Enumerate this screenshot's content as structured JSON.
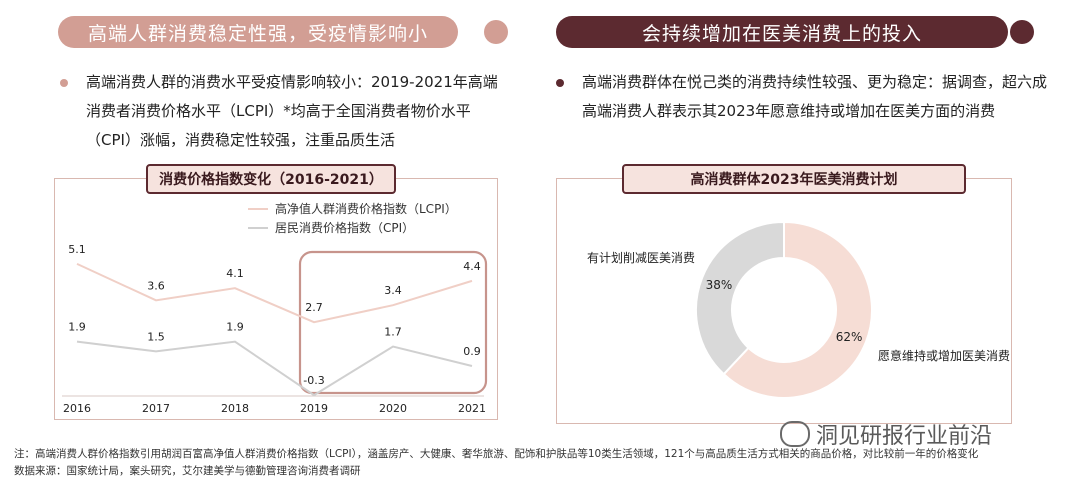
{
  "left": {
    "header": "高端人群消费稳定性强，受疫情影响小",
    "bullet": "高端消费人群的消费水平受疫情影响较小：2019-2021年高端消费者消费价格水平（LCPI）*均高于全国消费者物价水平（CPI）涨幅，消费稳定性较强，注重品质生活",
    "panel_title": "消费价格指数变化（2016-2021）"
  },
  "right": {
    "header": "会持续增加在医美消费上的投入",
    "bullet": "高端消费群体在悦己类的消费持续性较强、更为稳定：据调查，超六成高端消费人群表示其2023年愿意维持或增加在医美方面的消费",
    "panel_title": "高消费群体2023年医美消费计划"
  },
  "chart_data": [
    {
      "type": "line",
      "title": "消费价格指数变化（2016-2021）",
      "x": [
        "2016",
        "2017",
        "2018",
        "2019",
        "2020",
        "2021"
      ],
      "series": [
        {
          "name": "高净值人群消费价格指数（LCPI）",
          "values": [
            5.1,
            3.6,
            4.1,
            2.7,
            3.4,
            4.4
          ],
          "color": "#f0cfc6"
        },
        {
          "name": "居民消费价格指数（CPI）",
          "values": [
            1.9,
            1.5,
            1.9,
            -0.3,
            1.7,
            0.9
          ],
          "color": "#d0d0d0"
        }
      ],
      "ylim": [
        -0.5,
        6
      ],
      "annotation": "2019-2021 highlighted"
    },
    {
      "type": "pie",
      "title": "高消费群体2023年医美消费计划",
      "categories": [
        "愿意维持或增加医美消费",
        "有计划削减医美消费"
      ],
      "values": [
        62,
        38
      ],
      "labels": [
        "62%",
        "38%"
      ],
      "colors": [
        "#f6ddd5",
        "#d9d9d9"
      ]
    }
  ],
  "footnote": {
    "line1": "注：高端消费人群价格指数引用胡润百富高净值人群消费价格指数（LCPI），涵盖房产、大健康、奢华旅游、配饰和护肤品等10类生活领域，121个与高品质生活方式相关的商品价格，对比较前一年的价格变化",
    "line2": "数据来源：国家统计局，案头研究，艾尔建美学与德勤管理咨询消费者调研"
  },
  "watermark": "洞见研报行业前沿"
}
